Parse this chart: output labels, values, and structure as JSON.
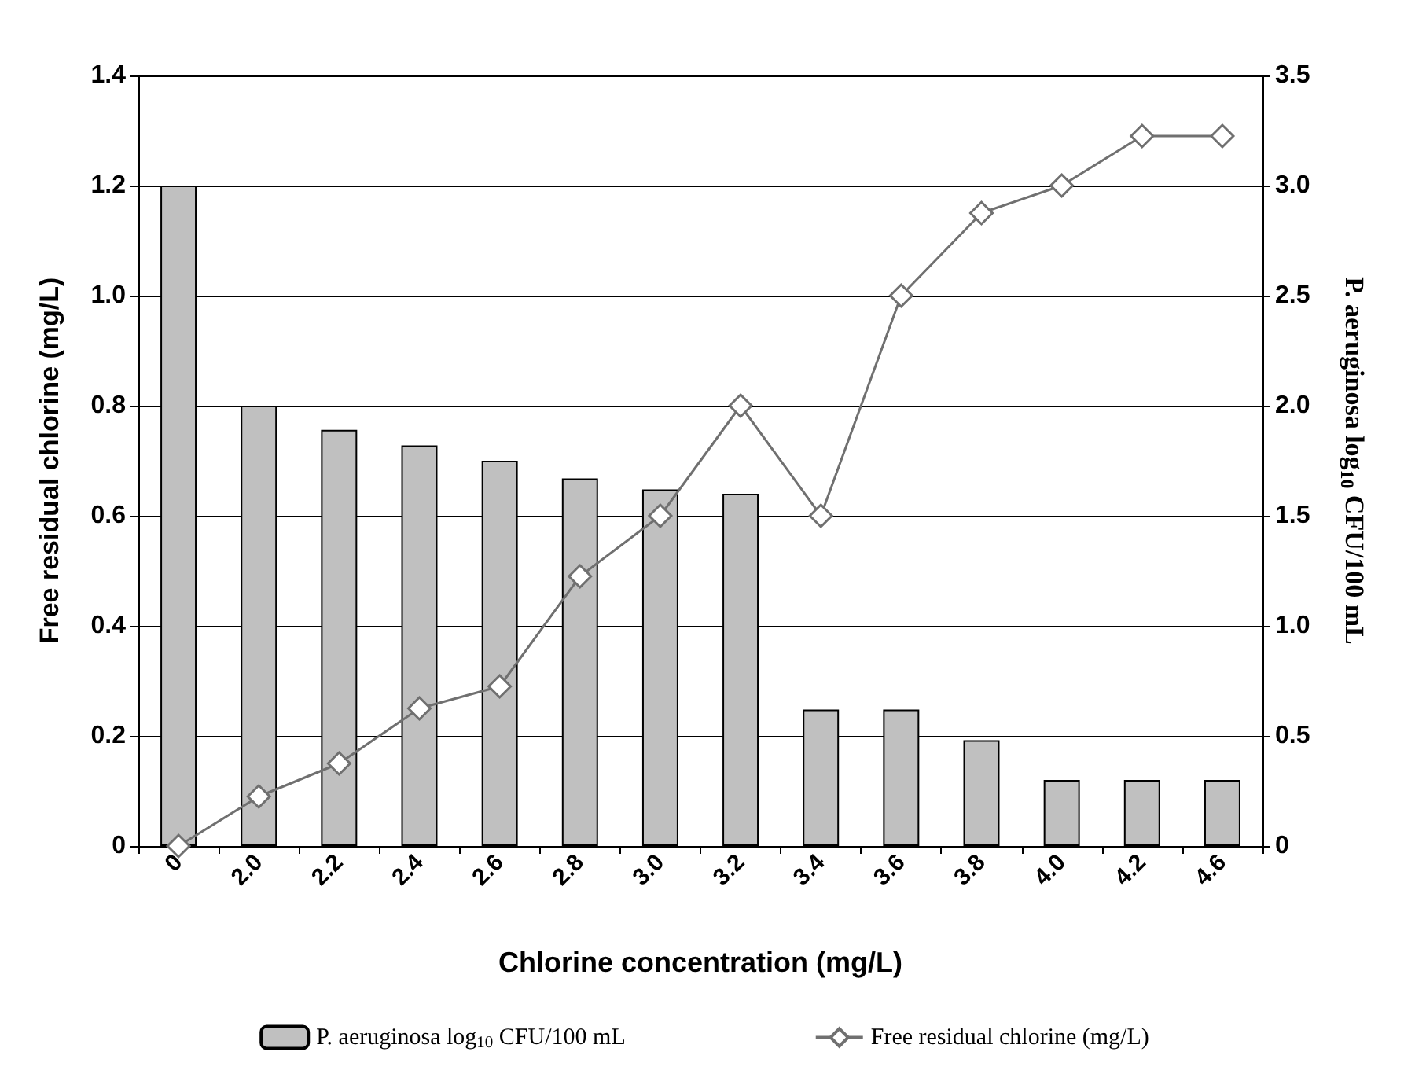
{
  "chart_data": {
    "type": "bar",
    "xlabel": "Chlorine concentration (mg/L)",
    "ylabel": "Free residual chlorine (mg/L)",
    "y2label": "P. aeruginosa log$_{10}$ CFU/100 mL",
    "categories": [
      "0",
      "2.0",
      "2.2",
      "2.4",
      "2.6",
      "2.8",
      "3.0",
      "3.2",
      "3.4",
      "3.6",
      "3.8",
      "4.0",
      "4.2",
      "4.6"
    ],
    "series": [
      {
        "name": "P. aeruginosa log$_{10}$ CFU/100 mL",
        "axis": "y2",
        "color": "#c0c0c0",
        "values": [
          3.0,
          2.0,
          1.89,
          1.82,
          1.75,
          1.67,
          1.62,
          1.6,
          0.62,
          0.62,
          0.48,
          0.3,
          0.3,
          0.3
        ]
      },
      {
        "name": "Free residual chlorine (mg/L)",
        "type": "line",
        "axis": "y",
        "color": "#707070",
        "marker": "diamond",
        "values": [
          0,
          0.09,
          0.15,
          0.25,
          0.29,
          0.49,
          0.6,
          0.8,
          0.6,
          1.0,
          1.15,
          1.2,
          1.29,
          1.29
        ]
      }
    ],
    "ylim": [
      0,
      1.4
    ],
    "yticks": [
      0,
      0.2,
      0.4,
      0.6,
      0.8,
      {
        "value": 1,
        "label": "1.0"
      },
      1.2,
      1.4
    ],
    "y2lim": [
      0,
      3.5
    ],
    "y2ticks": [
      0,
      0.5,
      {
        "value": 1,
        "label": "1.0"
      },
      1.5,
      {
        "value": 2,
        "label": "2.0"
      },
      2.5,
      {
        "value": 3,
        "label": "3.0"
      },
      3.5
    ],
    "grid": "y",
    "legend": "bottom"
  }
}
